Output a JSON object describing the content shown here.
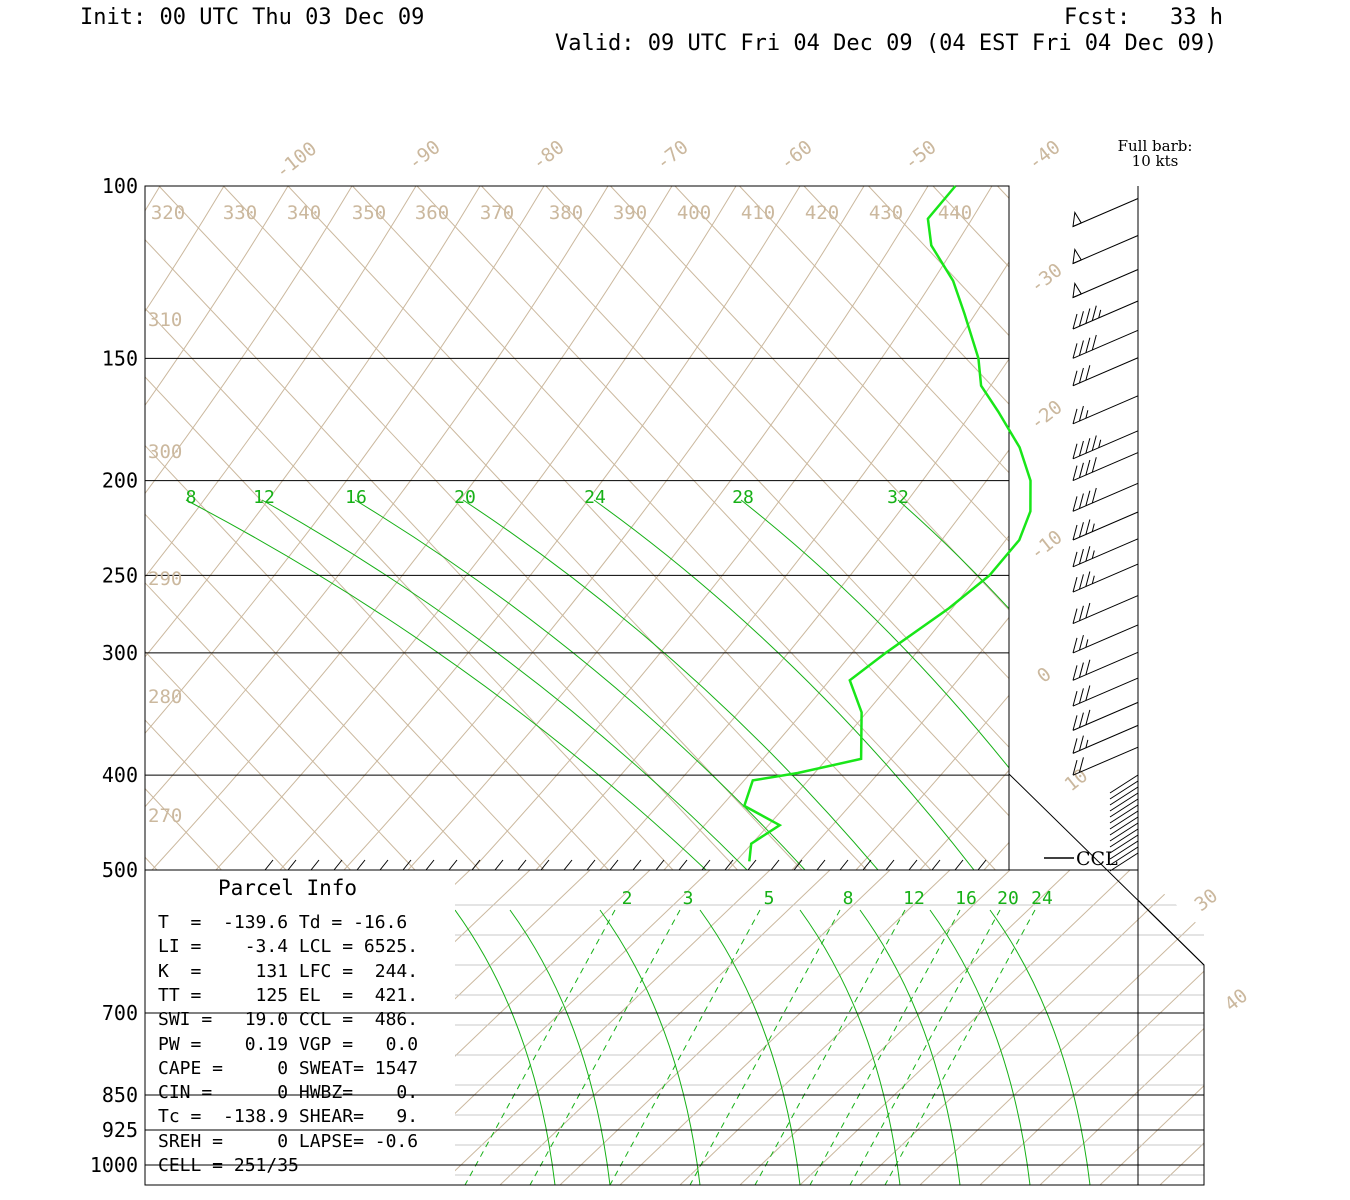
{
  "header": {
    "init": "Init: 00 UTC Thu 03 Dec 09",
    "fcst": "Fcst:   33 h",
    "valid": "Valid: 09 UTC Fri 04 Dec 09 (04 EST Fri 04 Dec 09)"
  },
  "barb_note": {
    "line1": "Full barb:",
    "line2": "10 kts"
  },
  "parcel_info": {
    "title": "Parcel Info",
    "rows": [
      "T  =  -139.6 Td = -16.6",
      "LI =    -3.4 LCL = 6525.",
      "K  =     131 LFC =  244.",
      "TT =     125 EL  =  421.",
      "SWI =   19.0 CCL =  486.",
      "PW =    0.19 VGP =   0.0",
      "CAPE =     0 SWEAT= 1547",
      "CIN =      0 HWBZ=    0.",
      "Tc =  -138.9 SHEAR=   9.",
      "SREH =     0 LAPSE= -0.6",
      "CELL = 251/35"
    ]
  },
  "colors": {
    "temperature_trace": "#19e619",
    "isotherm_adiabat": "#cbb89e",
    "mixing_ratio": "#16b016",
    "barbs": "#000000"
  },
  "chart_data": {
    "type": "line",
    "title": "",
    "pressure_levels": [
      {
        "label": "100",
        "p": 100
      },
      {
        "label": "150",
        "p": 150
      },
      {
        "label": "200",
        "p": 200
      },
      {
        "label": "250",
        "p": 250
      },
      {
        "label": "300",
        "p": 300
      },
      {
        "label": "400",
        "p": 400
      },
      {
        "label": "500",
        "p": 500
      },
      {
        "label": "700",
        "p": 700
      },
      {
        "label": "850",
        "p": 850
      },
      {
        "label": "925",
        "p": 925
      },
      {
        "label": "1000",
        "p": 1000
      }
    ],
    "isotherm_labels": [
      "-100",
      "-90",
      "-80",
      "-70",
      "-60",
      "-50",
      "-40",
      "-30",
      "-20",
      "-10",
      "0",
      "10",
      "30",
      "40"
    ],
    "theta_labels_top": [
      "320",
      "330",
      "340",
      "350",
      "360",
      "370",
      "380",
      "390",
      "400",
      "410",
      "420",
      "430",
      "440"
    ],
    "theta_labels_left": [
      "310",
      "300",
      "290",
      "280",
      "270"
    ],
    "mixing_ratio_labels_upper": [
      "8",
      "12",
      "16",
      "20",
      "24",
      "28",
      "32"
    ],
    "mixing_ratio_labels_lower": [
      "2",
      "3",
      "5",
      "8",
      "12",
      "16",
      "20",
      "24"
    ],
    "ccl_label": "CCL",
    "series": [
      {
        "type": "temperature",
        "points": [
          {
            "p": 100,
            "t": -44
          },
          {
            "p": 108,
            "t": -44
          },
          {
            "p": 115,
            "t": -42
          },
          {
            "p": 125,
            "t": -38
          },
          {
            "p": 135,
            "t": -35
          },
          {
            "p": 150,
            "t": -31
          },
          {
            "p": 160,
            "t": -29
          },
          {
            "p": 170,
            "t": -26
          },
          {
            "p": 185,
            "t": -22
          },
          {
            "p": 200,
            "t": -19
          },
          {
            "p": 215,
            "t": -17
          },
          {
            "p": 230,
            "t": -16
          },
          {
            "p": 250,
            "t": -16
          },
          {
            "p": 270,
            "t": -17
          },
          {
            "p": 300,
            "t": -19
          },
          {
            "p": 320,
            "t": -20
          },
          {
            "p": 345,
            "t": -17
          },
          {
            "p": 385,
            "t": -14
          },
          {
            "p": 398,
            "t": -18
          },
          {
            "p": 405,
            "t": -21
          },
          {
            "p": 430,
            "t": -20
          },
          {
            "p": 450,
            "t": -16
          },
          {
            "p": 470,
            "t": -17
          },
          {
            "p": 490,
            "t": -16
          }
        ]
      }
    ],
    "wind_barbs": [
      {
        "p": 110,
        "kt": 50
      },
      {
        "p": 120,
        "kt": 50
      },
      {
        "p": 130,
        "kt": 50
      },
      {
        "p": 140,
        "kt": 45
      },
      {
        "p": 150,
        "kt": 40
      },
      {
        "p": 160,
        "kt": 30
      },
      {
        "p": 175,
        "kt": 25
      },
      {
        "p": 190,
        "kt": 45
      },
      {
        "p": 200,
        "kt": 40
      },
      {
        "p": 215,
        "kt": 40
      },
      {
        "p": 230,
        "kt": 35
      },
      {
        "p": 245,
        "kt": 35
      },
      {
        "p": 260,
        "kt": 35
      },
      {
        "p": 280,
        "kt": 30
      },
      {
        "p": 300,
        "kt": 25
      },
      {
        "p": 320,
        "kt": 30
      },
      {
        "p": 340,
        "kt": 30
      },
      {
        "p": 360,
        "kt": 30
      },
      {
        "p": 380,
        "kt": 25
      },
      {
        "p": 400,
        "kt": 20
      }
    ]
  }
}
